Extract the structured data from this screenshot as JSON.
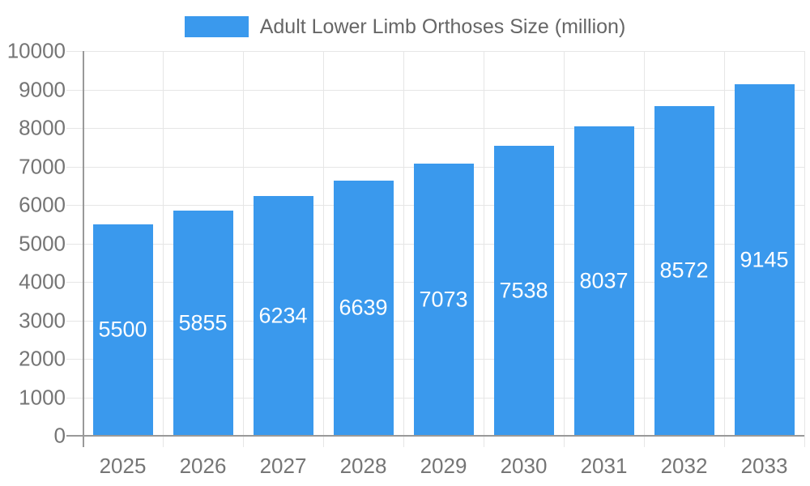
{
  "legend": {
    "label": "Adult Lower Limb Orthoses Size (million)"
  },
  "colors": {
    "bar": "#3A99ED",
    "axis_line": "#999999",
    "grid_line": "#e6e6e6",
    "axis_text": "#757575",
    "legend_text": "#666666",
    "bar_label_text": "#ffffff",
    "background": "#ffffff"
  },
  "chart_data": {
    "type": "bar",
    "title": "Adult Lower Limb Orthoses Size (million)",
    "categories": [
      "2025",
      "2026",
      "2027",
      "2028",
      "2029",
      "2030",
      "2031",
      "2032",
      "2033"
    ],
    "values": [
      5500,
      5855,
      6234,
      6639,
      7073,
      7538,
      8037,
      8572,
      9145
    ],
    "series_name": "Adult Lower Limb Orthoses Size (million)",
    "xlabel": "",
    "ylabel": "",
    "ylim": [
      0,
      10000
    ],
    "ytick_interval": 1000,
    "ytick_labels": [
      "0",
      "1000",
      "2000",
      "3000",
      "4000",
      "5000",
      "6000",
      "7000",
      "8000",
      "9000",
      "10000"
    ],
    "grid": true,
    "grid_horizontal": true,
    "grid_vertical": true,
    "legend_position": "top",
    "value_labels": "inside-center"
  }
}
